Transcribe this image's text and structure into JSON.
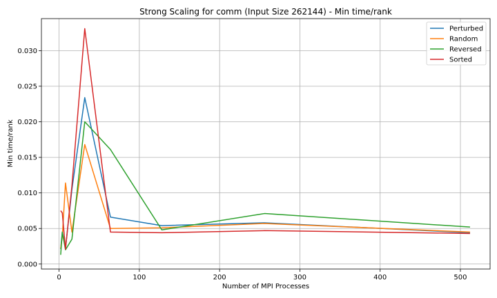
{
  "chart_data": {
    "type": "line",
    "title": "Strong Scaling for comm (Input Size 262144) - Min time/rank",
    "xlabel": "Number of MPI Processes",
    "ylabel": "Min time/rank",
    "xlim": [
      -22,
      537
    ],
    "ylim": [
      -0.0007,
      0.0345
    ],
    "x_ticks": [
      0,
      100,
      200,
      300,
      400,
      500
    ],
    "x_tick_labels": [
      "0",
      "100",
      "200",
      "300",
      "400",
      "500"
    ],
    "y_ticks": [
      0.0,
      0.005,
      0.01,
      0.015,
      0.02,
      0.025,
      0.03
    ],
    "y_tick_labels": [
      "0.000",
      "0.005",
      "0.010",
      "0.015",
      "0.020",
      "0.025",
      "0.030"
    ],
    "grid": true,
    "legend_position": "top-right",
    "x": [
      2,
      4,
      8,
      16,
      32,
      64,
      128,
      256,
      512
    ],
    "series": [
      {
        "name": "Perturbed",
        "color": "#1f77b4",
        "values": [
          0.0021,
          0.0045,
          0.0022,
          0.0105,
          0.0234,
          0.0066,
          0.0054,
          0.0058,
          0.0044
        ]
      },
      {
        "name": "Random",
        "color": "#ff7f0e",
        "values": [
          0.0022,
          0.0038,
          0.0114,
          0.0045,
          0.0168,
          0.005,
          0.0051,
          0.0057,
          0.0045
        ]
      },
      {
        "name": "Reversed",
        "color": "#2ca02c",
        "values": [
          0.0013,
          0.0045,
          0.002,
          0.0035,
          0.02,
          0.0161,
          0.0048,
          0.0071,
          0.0052
        ]
      },
      {
        "name": "Sorted",
        "color": "#d62728",
        "values": [
          0.0075,
          0.0072,
          0.0021,
          0.011,
          0.0331,
          0.0045,
          0.0044,
          0.0047,
          0.0043
        ]
      }
    ]
  }
}
